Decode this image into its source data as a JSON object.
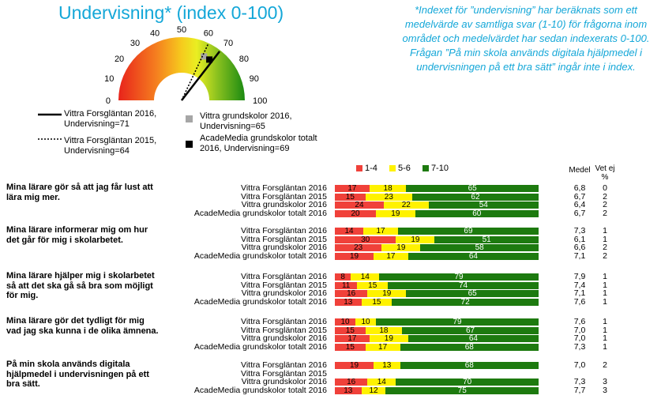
{
  "title": "Undervisning* (index 0-100)",
  "note": "*Indexet för ”undervisning” har beräknats som ett medelvärde av samtliga svar (1-10) för frågorna inom området och medelvärdet har sedan indexerats 0-100. Frågan ”På min skola används digitala hjälpmedel i undervisningen på ett bra sätt” ingår inte i index.",
  "gauge": {
    "ticks": [
      "0",
      "10",
      "20",
      "30",
      "40",
      "50",
      "60",
      "70",
      "80",
      "90",
      "100"
    ],
    "needles": [
      {
        "name": "Vittra Forsgläntan 2016",
        "value": 71,
        "style": "solid"
      },
      {
        "name": "Vittra Forsgläntan 2015",
        "value": 64,
        "style": "dotted"
      }
    ],
    "markers": [
      {
        "name": "Vittra grundskolor 2016",
        "value": 65,
        "color": "#a6a6a6"
      },
      {
        "name": "AcadeMedia grundskolor totalt",
        "value": 69,
        "color": "#000000"
      }
    ]
  },
  "legend": {
    "l1a": "Vittra Forsgläntan 2016,",
    "l1b": "Undervisning=71",
    "l2a": "Vittra Forsgläntan 2015,",
    "l2b": "Undervisning=64",
    "l3a": "Vittra grundskolor 2016,",
    "l3b": "Undervisning=65",
    "l4a": "AcadeMedia grundskolor totalt",
    "l4b": "2016, Undervisning=69"
  },
  "bar_legend": {
    "red": "1-4",
    "yellow": "5-6",
    "green": "7-10"
  },
  "headers": {
    "medel": "Medel",
    "vetej1": "Vet ej",
    "vetej2": "%"
  },
  "colors": {
    "red": "#f0413a",
    "yellow": "#fff200",
    "green": "#1d7a0f",
    "accent": "#14a7d8"
  },
  "chart_data": {
    "type": "bar",
    "stacked": true,
    "segments": [
      "1-4",
      "5-6",
      "7-10"
    ],
    "questions": [
      {
        "text": "Mina lärare gör så att jag får lust att lära mig mer.",
        "rows": [
          {
            "label": "Vittra Forsgläntan 2016",
            "values": [
              17,
              18,
              65
            ],
            "medel": "6,8",
            "vetej": "0"
          },
          {
            "label": "Vittra Forsgläntan 2015",
            "values": [
              15,
              23,
              62
            ],
            "medel": "6,7",
            "vetej": "2"
          },
          {
            "label": "Vittra grundskolor 2016",
            "values": [
              24,
              22,
              54
            ],
            "medel": "6,4",
            "vetej": "2"
          },
          {
            "label": "AcadeMedia grundskolor totalt 2016",
            "values": [
              20,
              19,
              60
            ],
            "medel": "6,7",
            "vetej": "2"
          }
        ]
      },
      {
        "text": "Mina lärare informerar mig om hur det går för mig i skolarbetet.",
        "rows": [
          {
            "label": "Vittra Forsgläntan 2016",
            "values": [
              14,
              17,
              69
            ],
            "medel": "7,3",
            "vetej": "1"
          },
          {
            "label": "Vittra Forsgläntan 2015",
            "values": [
              30,
              19,
              51
            ],
            "medel": "6,1",
            "vetej": "1"
          },
          {
            "label": "Vittra grundskolor 2016",
            "values": [
              23,
              19,
              58
            ],
            "medel": "6,6",
            "vetej": "2"
          },
          {
            "label": "AcadeMedia grundskolor totalt 2016",
            "values": [
              19,
              17,
              64
            ],
            "medel": "7,1",
            "vetej": "2"
          }
        ]
      },
      {
        "text": "Mina lärare hjälper mig i skolarbetet så att det ska gå så bra som möjligt för mig.",
        "rows": [
          {
            "label": "Vittra Forsgläntan 2016",
            "values": [
              8,
              14,
              79
            ],
            "medel": "7,9",
            "vetej": "1"
          },
          {
            "label": "Vittra Forsgläntan 2015",
            "values": [
              11,
              15,
              74
            ],
            "medel": "7,4",
            "vetej": "1"
          },
          {
            "label": "Vittra grundskolor 2016",
            "values": [
              16,
              19,
              65
            ],
            "medel": "7,1",
            "vetej": "1"
          },
          {
            "label": "AcadeMedia grundskolor totalt 2016",
            "values": [
              13,
              15,
              72
            ],
            "medel": "7,6",
            "vetej": "1"
          }
        ]
      },
      {
        "text": "Mina lärare gör det tydligt för mig vad jag ska kunna i de olika ämnena.",
        "rows": [
          {
            "label": "Vittra Forsgläntan 2016",
            "values": [
              10,
              10,
              79
            ],
            "medel": "7,6",
            "vetej": "1"
          },
          {
            "label": "Vittra Forsgläntan 2015",
            "values": [
              15,
              18,
              67
            ],
            "medel": "7,0",
            "vetej": "1"
          },
          {
            "label": "Vittra grundskolor 2016",
            "values": [
              17,
              19,
              64
            ],
            "medel": "7,0",
            "vetej": "1"
          },
          {
            "label": "AcadeMedia grundskolor totalt 2016",
            "values": [
              15,
              17,
              68
            ],
            "medel": "7,3",
            "vetej": "1"
          }
        ]
      },
      {
        "text": "På min skola används digitala hjälpmedel i undervisningen på ett bra sätt.",
        "rows": [
          {
            "label": "Vittra Forsgläntan 2016",
            "values": [
              19,
              13,
              68
            ],
            "medel": "7,0",
            "vetej": "2"
          },
          {
            "label": "Vittra Forsgläntan 2015",
            "values": null,
            "medel": "",
            "vetej": ""
          },
          {
            "label": "Vittra grundskolor 2016",
            "values": [
              16,
              14,
              70
            ],
            "medel": "7,3",
            "vetej": "3"
          },
          {
            "label": "AcadeMedia grundskolor totalt 2016",
            "values": [
              13,
              12,
              75
            ],
            "medel": "7,7",
            "vetej": "3"
          }
        ]
      }
    ]
  }
}
